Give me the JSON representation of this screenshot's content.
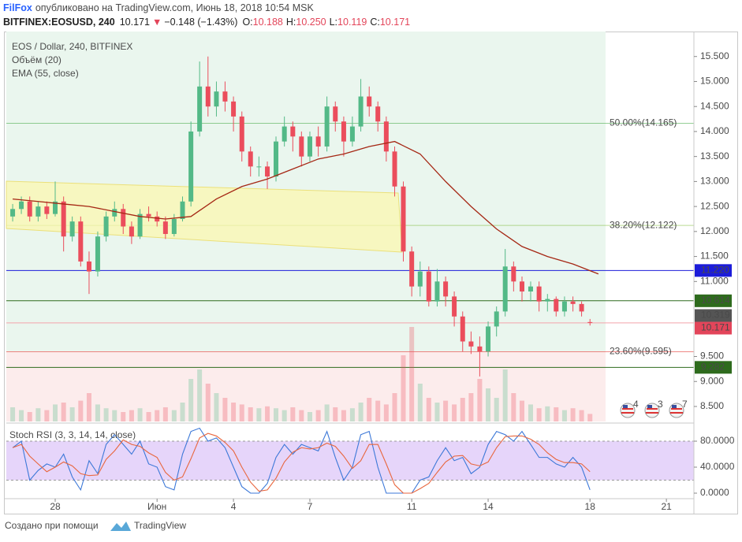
{
  "header": {
    "author": "FilFox",
    "published": "опубликовано на TradingView.com, Июнь 18, 2018 10:54 MSK",
    "symbol": "BITFINEX:EOSUSD, 240",
    "last": "10.171",
    "arrow": "▼",
    "change": "−0.148 (−1.43%)",
    "ohlc": [
      {
        "label": "O:",
        "value": "10.188"
      },
      {
        "label": "H:",
        "value": "10.250"
      },
      {
        "label": "L:",
        "value": "10.119"
      },
      {
        "label": "C:",
        "value": "10.171"
      }
    ]
  },
  "chart_data": {
    "type": "candlestick",
    "title": "EOS / Dollar, 240, BITFINEX",
    "indicators": [
      "Объём (20)",
      "EMA (55, close)"
    ],
    "up_color": "#53b987",
    "down_color": "#eb4d5c",
    "x": [
      -4.67,
      -4.33,
      -4,
      -3.67,
      -3.33,
      -3,
      -2.67,
      -2.33,
      -2,
      -1.67,
      -1.33,
      -1,
      -0.67,
      -0.33,
      0,
      0.33,
      0.67,
      1,
      1.33,
      1.67,
      2,
      2.33,
      2.67,
      3,
      3.33,
      3.67,
      4,
      4.33,
      4.67,
      5,
      5.33,
      5.67,
      6,
      6.33,
      6.67,
      7,
      7.33,
      7.67,
      8,
      8.33,
      8.67,
      9,
      9.33,
      9.67,
      10,
      10.33,
      10.67,
      11,
      11.33,
      11.67,
      12,
      12.33,
      12.67,
      13,
      13.33,
      13.67,
      14,
      14.33,
      14.67,
      15,
      15.33,
      15.67,
      16,
      16.33,
      16.67,
      17,
      17.33,
      17.67,
      18
    ],
    "open": [
      12.3,
      12.45,
      12.6,
      12.3,
      12.5,
      12.35,
      12.6,
      11.9,
      12.2,
      11.4,
      11.2,
      11.9,
      12.3,
      12.45,
      12.1,
      11.9,
      12.35,
      12.3,
      12.2,
      11.95,
      12.25,
      12.6,
      14.0,
      14.9,
      14.5,
      14.8,
      14.6,
      14.3,
      13.6,
      13.3,
      13.3,
      13.1,
      13.8,
      14.1,
      13.9,
      13.5,
      13.9,
      13.7,
      14.5,
      14.2,
      13.8,
      14.1,
      14.7,
      14.5,
      14.2,
      13.6,
      12.9,
      11.6,
      10.9,
      11.2,
      10.6,
      11.0,
      10.7,
      10.3,
      9.8,
      9.7,
      9.6,
      10.1,
      10.4,
      11.3,
      11.0,
      10.8,
      10.9,
      10.6,
      10.65,
      10.4,
      10.6,
      10.55,
      10.188
    ],
    "high": [
      12.55,
      12.7,
      12.7,
      12.6,
      12.6,
      13.0,
      12.7,
      12.3,
      12.3,
      11.6,
      12.0,
      12.4,
      12.6,
      12.55,
      12.2,
      12.45,
      12.5,
      12.4,
      12.3,
      12.35,
      12.7,
      14.2,
      15.4,
      15.5,
      15.0,
      15.0,
      14.7,
      14.4,
      13.7,
      13.5,
      13.4,
      13.9,
      14.3,
      14.2,
      14.0,
      14.0,
      14.1,
      14.7,
      14.6,
      14.3,
      14.3,
      15.05,
      14.9,
      14.6,
      14.3,
      13.7,
      13.0,
      11.7,
      11.4,
      11.3,
      11.25,
      11.1,
      10.8,
      10.4,
      10.0,
      9.9,
      10.2,
      10.5,
      11.65,
      11.4,
      11.1,
      11.0,
      11.0,
      10.75,
      10.7,
      10.7,
      10.7,
      10.6,
      10.25
    ],
    "low": [
      12.2,
      12.35,
      12.2,
      12.2,
      12.25,
      12.3,
      11.6,
      11.8,
      11.3,
      10.75,
      11.1,
      11.8,
      12.2,
      11.95,
      11.75,
      11.85,
      12.2,
      12.1,
      11.85,
      11.9,
      12.2,
      12.5,
      13.9,
      14.3,
      14.3,
      14.4,
      14.0,
      13.4,
      13.1,
      13.1,
      12.85,
      13.0,
      13.7,
      13.6,
      13.3,
      13.4,
      13.5,
      13.6,
      14.0,
      13.5,
      13.7,
      14.0,
      14.3,
      14.0,
      13.4,
      12.7,
      11.4,
      10.7,
      10.7,
      10.5,
      10.5,
      10.5,
      10.1,
      9.6,
      9.55,
      9.1,
      9.5,
      9.9,
      10.3,
      10.8,
      10.6,
      10.6,
      10.4,
      10.4,
      10.3,
      10.3,
      10.4,
      10.3,
      10.119
    ],
    "close": [
      12.45,
      12.6,
      12.3,
      12.5,
      12.35,
      12.6,
      11.9,
      12.2,
      11.4,
      11.2,
      11.9,
      12.3,
      12.45,
      12.1,
      11.9,
      12.35,
      12.3,
      12.2,
      11.95,
      12.25,
      12.6,
      14.0,
      14.9,
      14.5,
      14.8,
      14.6,
      14.3,
      13.6,
      13.3,
      13.3,
      13.1,
      13.8,
      14.1,
      13.9,
      13.5,
      13.9,
      13.7,
      14.5,
      14.2,
      13.8,
      14.1,
      14.7,
      14.5,
      14.2,
      13.6,
      12.9,
      11.6,
      10.9,
      11.2,
      10.6,
      11.0,
      10.7,
      10.3,
      9.8,
      9.7,
      9.6,
      10.1,
      10.4,
      11.3,
      11.0,
      10.8,
      10.9,
      10.6,
      10.65,
      10.4,
      10.6,
      10.55,
      10.4,
      10.171
    ],
    "volume": [
      15,
      12,
      10,
      14,
      12,
      18,
      20,
      15,
      22,
      30,
      18,
      14,
      12,
      10,
      12,
      14,
      10,
      12,
      15,
      12,
      20,
      45,
      55,
      40,
      30,
      25,
      20,
      18,
      15,
      14,
      16,
      14,
      12,
      15,
      12,
      10,
      12,
      18,
      15,
      12,
      14,
      20,
      25,
      22,
      18,
      30,
      70,
      100,
      40,
      25,
      20,
      22,
      18,
      25,
      30,
      45,
      35,
      25,
      55,
      30,
      22,
      18,
      14,
      16,
      15,
      12,
      14,
      12,
      8
    ],
    "ema": {
      "color": "#a52714",
      "x": [
        -4.67,
        -3.67,
        -2.67,
        -1.67,
        -0.67,
        0.33,
        1.33,
        2.33,
        3.33,
        4.33,
        5.33,
        6.33,
        7.33,
        8.33,
        9.33,
        10.33,
        11.33,
        12.33,
        13.33,
        14.33,
        15.33,
        16.33,
        17.33,
        18.33
      ],
      "values": [
        12.65,
        12.6,
        12.55,
        12.5,
        12.4,
        12.3,
        12.25,
        12.3,
        12.65,
        12.9,
        13.05,
        13.25,
        13.45,
        13.55,
        13.7,
        13.8,
        13.55,
        13.0,
        12.5,
        12.05,
        11.7,
        11.5,
        11.35,
        11.15
      ]
    },
    "xlim": [
      -4.92,
      22.08
    ],
    "xticks": [
      {
        "value": -3,
        "label": "28"
      },
      {
        "value": 1,
        "label": "Июн"
      },
      4,
      7,
      11,
      14,
      18,
      21
    ],
    "ylim": [
      8.2,
      16.0
    ],
    "yticks": [
      {
        "value": 15.5,
        "label": "15.500"
      },
      {
        "value": 15.0,
        "label": "15.000"
      },
      {
        "value": 14.5,
        "label": "14.500"
      },
      {
        "value": 14.0,
        "label": "14.000"
      },
      {
        "value": 13.5,
        "label": "13.500"
      },
      {
        "value": 13.0,
        "label": "13.000"
      },
      {
        "value": 12.5,
        "label": "12.500"
      },
      {
        "value": 12.0,
        "label": "12.000"
      },
      {
        "value": 11.5,
        "label": "11.500"
      },
      {
        "value": 11.0,
        "label": "11.000"
      },
      {
        "value": 9.5,
        "label": "9.500"
      },
      {
        "value": 9.0,
        "label": "9.000"
      },
      {
        "value": 8.5,
        "label": "8.500"
      }
    ],
    "levels": [
      {
        "value": 11.22,
        "label": "11.220",
        "color": "#1c1cd9",
        "line_color": "#1c1cd9"
      },
      {
        "value": 10.614,
        "label": "10.614",
        "color": "#2e6b1d",
        "line_color": "#2e6b1d"
      },
      {
        "value": 10.319,
        "label": "10.319",
        "color": "#555555"
      },
      {
        "value": 10.171,
        "label": "10.171",
        "color": "#e3455a",
        "line_color": "#f3a3ab"
      },
      {
        "value": 9.282,
        "label": "9.282",
        "color": "#2e6b1d",
        "line_color": "#2e6b1d"
      }
    ],
    "fib": [
      {
        "value": 14.165,
        "label": "50.00%(14.165)",
        "color": "#4caf50"
      },
      {
        "value": 12.122,
        "label": "38.20%(12.122)",
        "color": "#8bc34a"
      },
      {
        "value": 9.595,
        "label": "23.60%(9.595)",
        "color": "#e53935"
      }
    ],
    "events": [
      "4",
      "3",
      "7"
    ],
    "stoch": {
      "name": "Stoch RSI (3, 3, 14, 14, close)",
      "k_color": "#3c78d8",
      "d_color": "#e8663d",
      "k": [
        70,
        80,
        20,
        35,
        45,
        40,
        60,
        25,
        5,
        50,
        30,
        75,
        90,
        75,
        60,
        80,
        45,
        40,
        10,
        5,
        60,
        95,
        100,
        80,
        85,
        70,
        40,
        10,
        0,
        0,
        15,
        55,
        75,
        60,
        75,
        70,
        65,
        95,
        55,
        20,
        40,
        90,
        95,
        40,
        0,
        0,
        0,
        0,
        20,
        25,
        50,
        70,
        50,
        55,
        30,
        40,
        75,
        95,
        90,
        80,
        95,
        75,
        55,
        55,
        45,
        40,
        55,
        40,
        5
      ],
      "d": [
        70,
        75,
        57,
        45,
        33,
        40,
        48,
        42,
        30,
        27,
        28,
        52,
        65,
        82,
        75,
        72,
        62,
        55,
        32,
        20,
        25,
        53,
        85,
        92,
        88,
        78,
        65,
        40,
        17,
        3,
        5,
        23,
        48,
        63,
        70,
        68,
        70,
        77,
        72,
        57,
        38,
        50,
        75,
        75,
        45,
        13,
        0,
        0,
        7,
        15,
        32,
        48,
        57,
        58,
        45,
        42,
        48,
        70,
        87,
        88,
        88,
        83,
        75,
        62,
        52,
        47,
        47,
        45,
        33
      ],
      "band": [
        20,
        80
      ],
      "ylim": [
        -8.5,
        106.7
      ],
      "yticks": [
        {
          "value": 80,
          "label": "80.0000"
        },
        {
          "value": 40,
          "label": "40.0000"
        },
        {
          "value": 0,
          "label": "0.0000"
        }
      ]
    }
  },
  "footer": {
    "text": "Создано при помощи",
    "brand": "TradingView"
  }
}
